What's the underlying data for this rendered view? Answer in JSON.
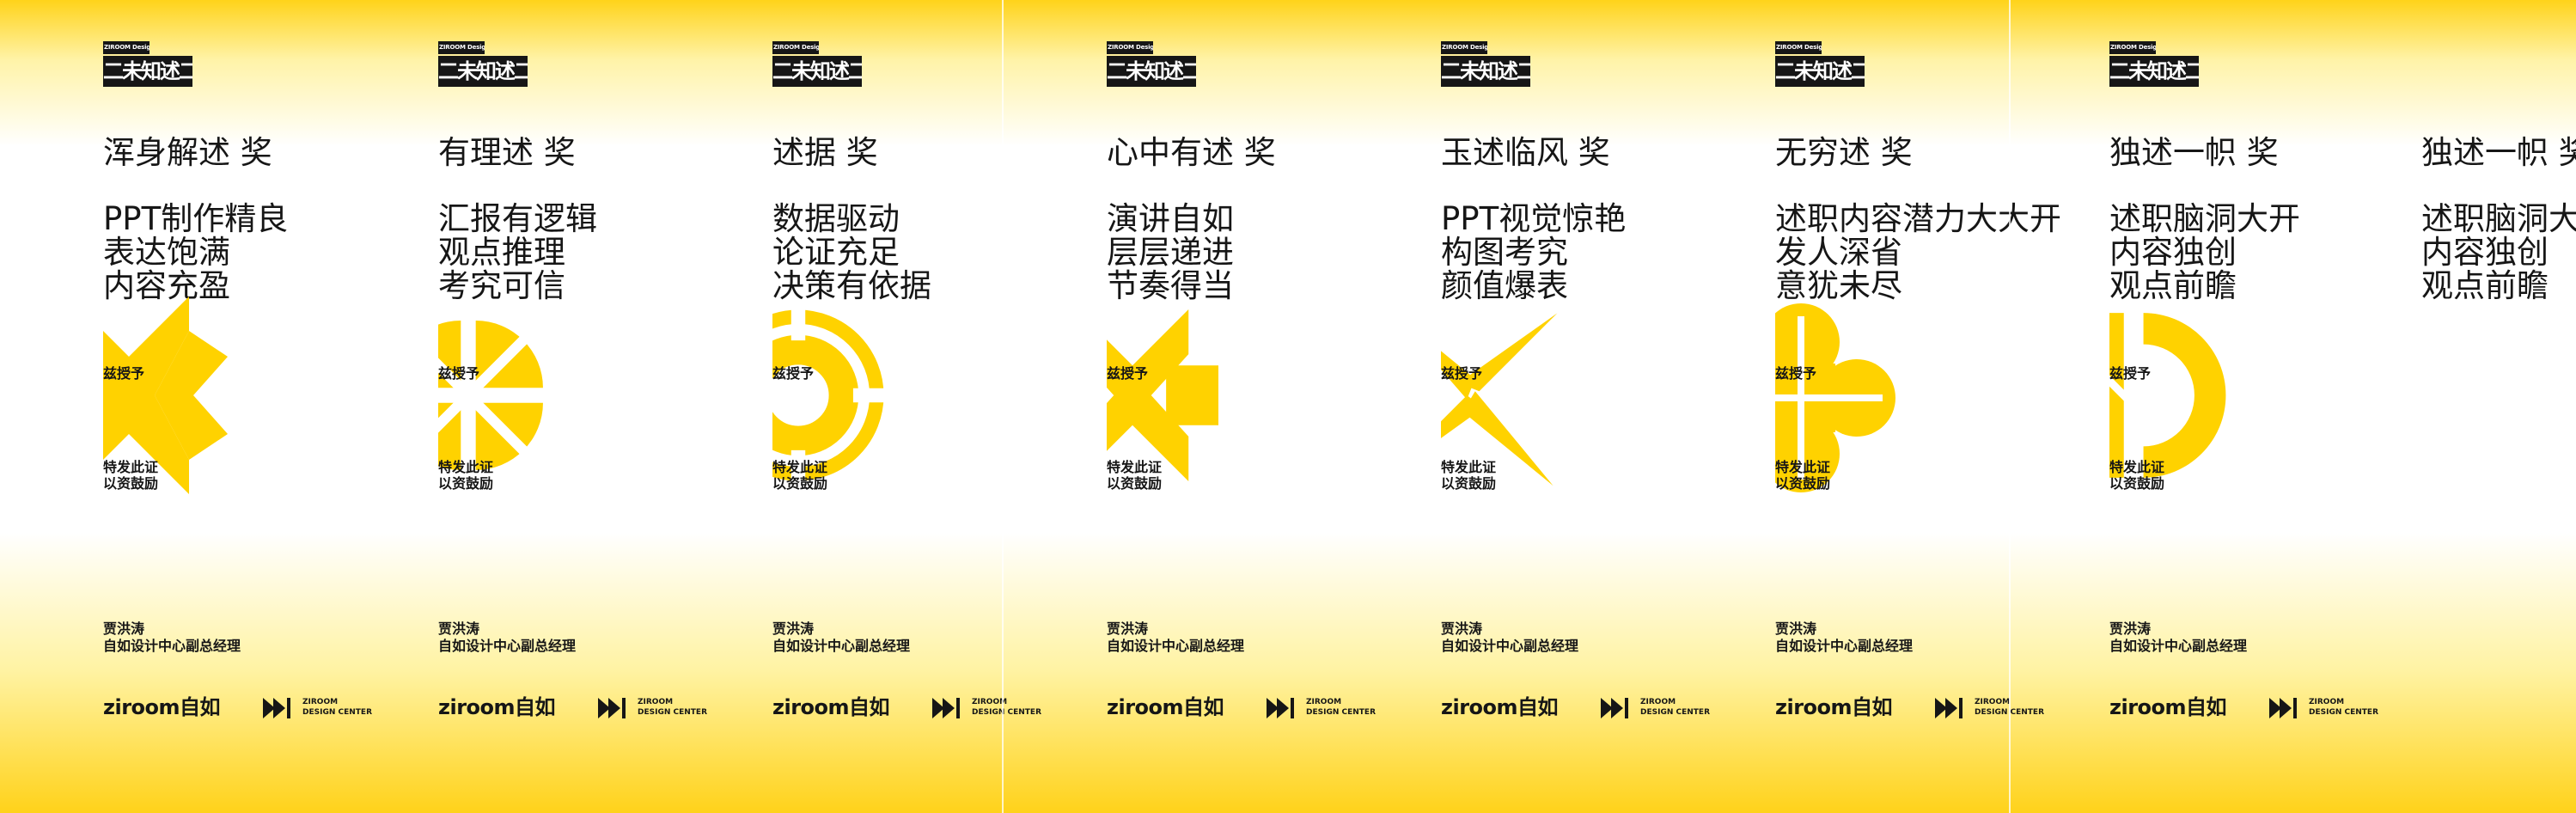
{
  "logo": {
    "top_text": "ZIROOM Design Center",
    "bottom_text": "二未知述二〇二〇"
  },
  "common": {
    "grant": "兹授予",
    "issue_line1": "特发此证",
    "issue_line2": "以资鼓励",
    "signer_name": "贾洪涛",
    "signer_title": "自如设计中心副总经理",
    "brand_text": "ziroom自如",
    "dc_line1": "ZIROOM",
    "dc_line2": "DESIGN CENTER"
  },
  "cards": [
    {
      "title": "浑身解述 奖",
      "lines": [
        "PPT制作精良",
        "表达饱满",
        "内容充盈"
      ],
      "emblem": "x-shape-icon"
    },
    {
      "title": "有理述 奖",
      "lines": [
        "汇报有逻辑",
        "观点推理",
        "考究可信"
      ],
      "emblem": "four-leaf-icon"
    },
    {
      "title": "述据 奖",
      "lines": [
        "数据驱动",
        "论证充足",
        "决策有依据"
      ],
      "emblem": "lifebuoy-icon"
    },
    {
      "title": "心中有述 奖",
      "lines": [
        "演讲自如",
        "层层递进",
        "节奏得当"
      ],
      "emblem": "cross-bowtie-icon"
    },
    {
      "title": "玉述临风 奖",
      "lines": [
        "PPT视觉惊艳",
        "构图考究",
        "颜值爆表"
      ],
      "emblem": "pinwheel-star-icon"
    },
    {
      "title": "无穷述 奖",
      "lines": [
        "述职内容潜力大大开",
        "发人深省",
        "意犹未尽"
      ],
      "emblem": "clover-icon"
    },
    {
      "title": "独述一帜 奖",
      "lines": [
        "述职脑洞大开",
        "内容独创",
        "观点前瞻"
      ],
      "emblem": "half-ring-icon"
    }
  ],
  "colors": {
    "accent": "#FFD200",
    "ink": "#161616",
    "bg": "#FFFFFF"
  }
}
